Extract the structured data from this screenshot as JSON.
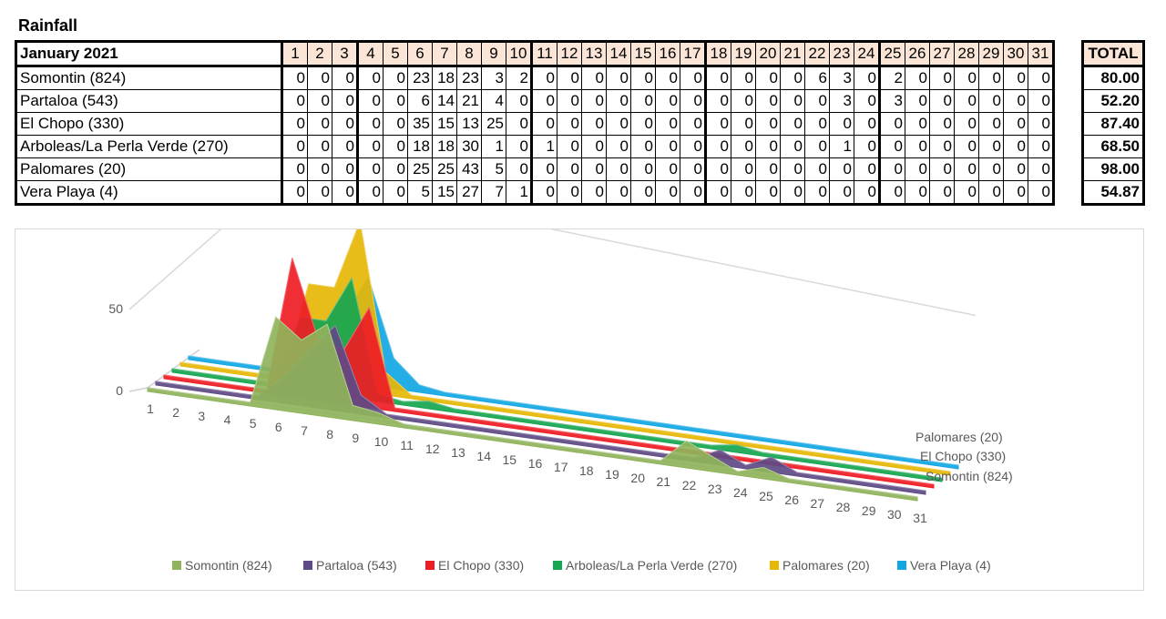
{
  "title": "Rainfall",
  "table": {
    "month_label": "January 2021",
    "total_label": "TOTAL",
    "days": [
      "1",
      "2",
      "3",
      "4",
      "5",
      "6",
      "7",
      "8",
      "9",
      "10",
      "11",
      "12",
      "13",
      "14",
      "15",
      "16",
      "17",
      "18",
      "19",
      "20",
      "21",
      "22",
      "23",
      "24",
      "25",
      "26",
      "27",
      "28",
      "29",
      "30",
      "31"
    ],
    "rows": [
      {
        "location": "Somontin (824)",
        "values": [
          0,
          0,
          0,
          0,
          0,
          23,
          18,
          23,
          3,
          2,
          0,
          0,
          0,
          0,
          0,
          0,
          0,
          0,
          0,
          0,
          0,
          6,
          3,
          0,
          2,
          0,
          0,
          0,
          0,
          0,
          0
        ],
        "total": "80.00"
      },
      {
        "location": "Partaloa (543)",
        "values": [
          0,
          0,
          0,
          0,
          0,
          6,
          14,
          21,
          4,
          0,
          0,
          0,
          0,
          0,
          0,
          0,
          0,
          0,
          0,
          0,
          0,
          0,
          3,
          0,
          3,
          0,
          0,
          0,
          0,
          0,
          0
        ],
        "total": "52.20"
      },
      {
        "location": "El Chopo (330)",
        "values": [
          0,
          0,
          0,
          0,
          0,
          35,
          15,
          13,
          25,
          0,
          0,
          0,
          0,
          0,
          0,
          0,
          0,
          0,
          0,
          0,
          0,
          0,
          0,
          0,
          0,
          0,
          0,
          0,
          0,
          0,
          0
        ],
        "total": "87.40"
      },
      {
        "location": "Arboleas/La Perla Verde (270)",
        "values": [
          0,
          0,
          0,
          0,
          0,
          18,
          18,
          30,
          1,
          0,
          1,
          0,
          0,
          0,
          0,
          0,
          0,
          0,
          0,
          0,
          0,
          0,
          1,
          0,
          0,
          0,
          0,
          0,
          0,
          0,
          0
        ],
        "total": "68.50"
      },
      {
        "location": "Palomares (20)",
        "values": [
          0,
          0,
          0,
          0,
          0,
          25,
          25,
          43,
          5,
          0,
          0,
          0,
          0,
          0,
          0,
          0,
          0,
          0,
          0,
          0,
          0,
          0,
          0,
          0,
          0,
          0,
          0,
          0,
          0,
          0,
          0
        ],
        "total": "98.00"
      },
      {
        "location": "Vera Playa (4)",
        "values": [
          0,
          0,
          0,
          0,
          0,
          5,
          15,
          27,
          7,
          1,
          0,
          0,
          0,
          0,
          0,
          0,
          0,
          0,
          0,
          0,
          0,
          0,
          0,
          0,
          0,
          0,
          0,
          0,
          0,
          0,
          0
        ],
        "total": "54.87"
      }
    ]
  },
  "chart_data": {
    "type": "area",
    "title": "",
    "x": [
      "1",
      "2",
      "3",
      "4",
      "5",
      "6",
      "7",
      "8",
      "9",
      "10",
      "11",
      "12",
      "13",
      "14",
      "15",
      "16",
      "17",
      "18",
      "19",
      "20",
      "21",
      "22",
      "23",
      "24",
      "25",
      "26",
      "27",
      "28",
      "29",
      "30",
      "31"
    ],
    "y_ticks": [
      "0",
      "50"
    ],
    "ylim": [
      0,
      50
    ],
    "depth_axis_labels": [
      "Palomares (20)",
      "El Chopo (330)",
      "Somontin (824)"
    ],
    "legend_position": "bottom",
    "series": [
      {
        "name": "Somontin (824)",
        "color": "#8fb35a",
        "values": [
          0,
          0,
          0,
          0,
          0,
          23,
          18,
          23,
          3,
          2,
          0,
          0,
          0,
          0,
          0,
          0,
          0,
          0,
          0,
          0,
          0,
          6,
          3,
          0,
          2,
          0,
          0,
          0,
          0,
          0,
          0
        ]
      },
      {
        "name": "Partaloa (543)",
        "color": "#5e4a86",
        "values": [
          0,
          0,
          0,
          0,
          0,
          6,
          14,
          21,
          4,
          0,
          0,
          0,
          0,
          0,
          0,
          0,
          0,
          0,
          0,
          0,
          0,
          0,
          3,
          0,
          3,
          0,
          0,
          0,
          0,
          0,
          0
        ]
      },
      {
        "name": "El Chopo (330)",
        "color": "#ee1c24",
        "values": [
          0,
          0,
          0,
          0,
          0,
          35,
          15,
          13,
          25,
          0,
          0,
          0,
          0,
          0,
          0,
          0,
          0,
          0,
          0,
          0,
          0,
          0,
          0,
          0,
          0,
          0,
          0,
          0,
          0,
          0,
          0
        ]
      },
      {
        "name": "Arboleas/La Perla Verde (270)",
        "color": "#16a550",
        "values": [
          0,
          0,
          0,
          0,
          0,
          18,
          18,
          30,
          1,
          0,
          1,
          0,
          0,
          0,
          0,
          0,
          0,
          0,
          0,
          0,
          0,
          0,
          1,
          0,
          0,
          0,
          0,
          0,
          0,
          0,
          0
        ]
      },
      {
        "name": "Palomares (20)",
        "color": "#e6b707",
        "values": [
          0,
          0,
          0,
          0,
          0,
          25,
          25,
          43,
          5,
          0,
          0,
          0,
          0,
          0,
          0,
          0,
          0,
          0,
          0,
          0,
          0,
          0,
          0,
          0,
          0,
          0,
          0,
          0,
          0,
          0,
          0
        ]
      },
      {
        "name": "Vera Playa (4)",
        "color": "#12a7e3",
        "values": [
          0,
          0,
          0,
          0,
          0,
          5,
          15,
          27,
          7,
          1,
          0,
          0,
          0,
          0,
          0,
          0,
          0,
          0,
          0,
          0,
          0,
          0,
          0,
          0,
          0,
          0,
          0,
          0,
          0,
          0,
          0
        ]
      }
    ]
  }
}
